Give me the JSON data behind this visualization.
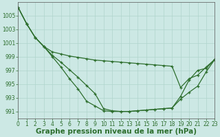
{
  "title": "Graphe pression niveau de la mer (hPa)",
  "background_color": "#cce8e4",
  "grid_color": "#b0d4cc",
  "line_color": "#2d6e2d",
  "xlim": [
    0,
    23
  ],
  "ylim": [
    990.0,
    1007.0
  ],
  "yticks": [
    991,
    993,
    995,
    997,
    999,
    1001,
    1003,
    1005
  ],
  "xticks": [
    0,
    1,
    2,
    3,
    4,
    5,
    6,
    7,
    8,
    9,
    10,
    11,
    12,
    13,
    14,
    15,
    16,
    17,
    18,
    19,
    20,
    21,
    22,
    23
  ],
  "series": [
    [
      1006.2,
      1003.8,
      1001.8,
      1000.5,
      999.7,
      999.4,
      999.1,
      998.9,
      998.7,
      998.5,
      998.4,
      998.3,
      998.2,
      998.1,
      998.0,
      997.9,
      997.8,
      997.7,
      997.6,
      994.5,
      995.8,
      996.3,
      997.5,
      998.6
    ],
    [
      1006.2,
      1003.8,
      1001.8,
      1000.5,
      999.2,
      998.2,
      997.1,
      996.0,
      994.8,
      993.6,
      991.4,
      991.1,
      991.0,
      991.0,
      991.1,
      991.2,
      991.3,
      991.4,
      991.5,
      993.2,
      995.6,
      997.0,
      997.3,
      998.6
    ],
    [
      1006.2,
      1003.8,
      1001.8,
      1000.5,
      999.0,
      997.5,
      995.8,
      994.3,
      992.5,
      991.8,
      991.1,
      991.0,
      991.0,
      991.0,
      991.1,
      991.2,
      991.3,
      991.4,
      991.5,
      992.8,
      993.8,
      994.7,
      996.8,
      998.6
    ]
  ],
  "marker": "+",
  "markersize": 3.5,
  "linewidth": 0.9,
  "title_fontsize": 7.5,
  "tick_fontsize": 5.5
}
